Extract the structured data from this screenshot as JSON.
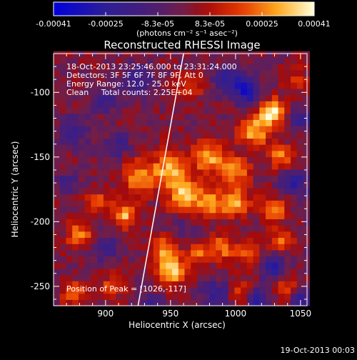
{
  "chart_data": {
    "type": "heatmap",
    "title": "Reconstructed RHESSI Image",
    "xlabel": "Heliocentric X (arcsec)",
    "ylabel": "Heliocentric Y (arcsec)",
    "xlim": [
      860,
      1055
    ],
    "ylim": [
      -265,
      -70
    ],
    "x_ticks": [
      900,
      950,
      1000,
      1050
    ],
    "y_ticks": [
      -100,
      -150,
      -200,
      -250
    ],
    "colorbar": {
      "min": -0.00041,
      "max": 0.00041,
      "tick_labels": [
        "-0.00041",
        "-0.00025",
        "-8.3e-05",
        "8.3e-05",
        "0.00025",
        "0.00041"
      ],
      "unit_label": "(photons cm⁻² s⁻¹ asec⁻²)"
    },
    "annotations": [
      "18-Oct-2013 23:25:46.000 to 23:31:24.000",
      "Detectors: 3F 5F 6F 7F 8F 9F, Att 0",
      "Energy Range: 12.0 - 25.0 keV",
      "Clean     Total counts: 2.25E+04",
      "Position of Peak = [1026,-117]"
    ],
    "peak": {
      "x": 1026,
      "y": -117
    },
    "limb_line": [
      [
        925,
        -265
      ],
      [
        960,
        -70
      ]
    ],
    "grid": false,
    "blobs": [
      {
        "x": 1028,
        "y": -115,
        "v": 0.00041,
        "r": 10
      },
      {
        "x": 1015,
        "y": -130,
        "v": 0.0003,
        "r": 12
      },
      {
        "x": 1035,
        "y": -150,
        "v": 0.00025,
        "r": 9
      },
      {
        "x": 950,
        "y": -160,
        "v": 0.00032,
        "r": 14
      },
      {
        "x": 925,
        "y": -165,
        "v": 0.00028,
        "r": 12
      },
      {
        "x": 980,
        "y": -150,
        "v": 0.0003,
        "r": 12
      },
      {
        "x": 1000,
        "y": -160,
        "v": 0.00026,
        "r": 11
      },
      {
        "x": 960,
        "y": -180,
        "v": 0.0003,
        "r": 12
      },
      {
        "x": 980,
        "y": -185,
        "v": 0.00028,
        "r": 11
      },
      {
        "x": 1000,
        "y": -185,
        "v": 0.0003,
        "r": 11
      },
      {
        "x": 1030,
        "y": -190,
        "v": 0.00026,
        "r": 10
      },
      {
        "x": 915,
        "y": -195,
        "v": 0.0003,
        "r": 10
      },
      {
        "x": 945,
        "y": -220,
        "v": 0.00026,
        "r": 9
      },
      {
        "x": 880,
        "y": -210,
        "v": 0.00024,
        "r": 10
      },
      {
        "x": 895,
        "y": -185,
        "v": 0.0002,
        "r": 9
      },
      {
        "x": 950,
        "y": -238,
        "v": 0.00036,
        "r": 11
      },
      {
        "x": 970,
        "y": -225,
        "v": 0.00022,
        "r": 9
      },
      {
        "x": 990,
        "y": -220,
        "v": 0.00024,
        "r": 10
      },
      {
        "x": 1010,
        "y": -225,
        "v": 0.00022,
        "r": 9
      },
      {
        "x": 1035,
        "y": -215,
        "v": 0.0002,
        "r": 9
      },
      {
        "x": 875,
        "y": -255,
        "v": 0.00024,
        "r": 9
      },
      {
        "x": 905,
        "y": -250,
        "v": 0.0002,
        "r": 9
      },
      {
        "x": 1005,
        "y": -255,
        "v": 0.0002,
        "r": 9
      },
      {
        "x": 1040,
        "y": -250,
        "v": 0.00018,
        "r": 9
      },
      {
        "x": 965,
        "y": -95,
        "v": 0.00016,
        "r": 10
      },
      {
        "x": 1045,
        "y": -90,
        "v": 0.00014,
        "r": 9
      },
      {
        "x": 925,
        "y": -90,
        "v": -0.00018,
        "r": 12
      },
      {
        "x": 900,
        "y": -105,
        "v": -0.0002,
        "r": 10
      },
      {
        "x": 995,
        "y": -90,
        "v": -0.00022,
        "r": 12
      },
      {
        "x": 1010,
        "y": -100,
        "v": -0.0003,
        "r": 10
      },
      {
        "x": 875,
        "y": -130,
        "v": -0.0002,
        "r": 11
      },
      {
        "x": 910,
        "y": -140,
        "v": -0.00016,
        "r": 9
      },
      {
        "x": 1045,
        "y": -170,
        "v": -0.00025,
        "r": 10
      },
      {
        "x": 1050,
        "y": -120,
        "v": -0.00018,
        "r": 8
      },
      {
        "x": 900,
        "y": -220,
        "v": -0.00018,
        "r": 10
      },
      {
        "x": 935,
        "y": -265,
        "v": -0.0002,
        "r": 10
      },
      {
        "x": 985,
        "y": -255,
        "v": -0.00022,
        "r": 10
      },
      {
        "x": 1030,
        "y": -235,
        "v": -0.00026,
        "r": 10
      },
      {
        "x": 1015,
        "y": -260,
        "v": -0.0003,
        "r": 8
      },
      {
        "x": 1050,
        "y": -260,
        "v": -0.00026,
        "r": 8
      },
      {
        "x": 870,
        "y": -170,
        "v": -0.00016,
        "r": 8
      },
      {
        "x": 960,
        "y": -205,
        "v": -0.0001,
        "r": 8
      }
    ]
  },
  "footer": {
    "timestamp": "19-Oct-2013 00:03"
  }
}
